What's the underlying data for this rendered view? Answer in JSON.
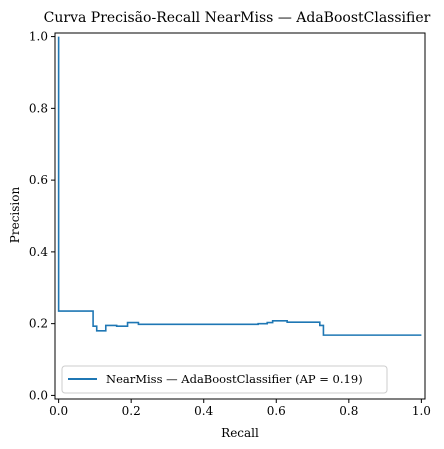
{
  "chart_data": {
    "type": "line",
    "title": "Curva Precisão-Recall NearMiss — AdaBoostClassifier",
    "xlabel": "Recall",
    "ylabel": "Precision",
    "xlim": [
      -0.01,
      1.01
    ],
    "ylim": [
      -0.01,
      1.01
    ],
    "xticks": [
      {
        "value": 0.0,
        "label": "0.0"
      },
      {
        "value": 0.2,
        "label": "0.2"
      },
      {
        "value": 0.4,
        "label": "0.4"
      },
      {
        "value": 0.6,
        "label": "0.6"
      },
      {
        "value": 0.8,
        "label": "0.8"
      },
      {
        "value": 1.0,
        "label": "1.0"
      }
    ],
    "yticks": [
      {
        "value": 0.0,
        "label": "0.0"
      },
      {
        "value": 0.2,
        "label": "0.2"
      },
      {
        "value": 0.4,
        "label": "0.4"
      },
      {
        "value": 0.6,
        "label": "0.6"
      },
      {
        "value": 0.8,
        "label": "0.8"
      },
      {
        "value": 1.0,
        "label": "1.0"
      }
    ],
    "grid": false,
    "legend": {
      "placement": "lower-left",
      "label": "NearMiss — AdaBoostClassifier (AP = 0.19)"
    },
    "series": [
      {
        "name": "NearMiss — AdaBoostClassifier (AP = 0.19)",
        "color": "#1f77b4",
        "drawstyle": "steps-post",
        "recall": [
          0.0,
          0.0,
          0.0,
          0.095,
          0.095,
          0.105,
          0.105,
          0.13,
          0.13,
          0.16,
          0.16,
          0.19,
          0.19,
          0.22,
          0.22,
          0.545,
          0.55,
          0.575,
          0.59,
          0.625,
          0.63,
          0.72,
          0.72,
          0.73,
          0.73,
          1.0
        ],
        "precision": [
          1.0,
          0.95,
          0.235,
          0.235,
          0.193,
          0.193,
          0.18,
          0.18,
          0.195,
          0.195,
          0.193,
          0.193,
          0.203,
          0.203,
          0.198,
          0.198,
          0.2,
          0.203,
          0.208,
          0.208,
          0.204,
          0.204,
          0.195,
          0.195,
          0.168,
          0.168
        ]
      }
    ]
  }
}
